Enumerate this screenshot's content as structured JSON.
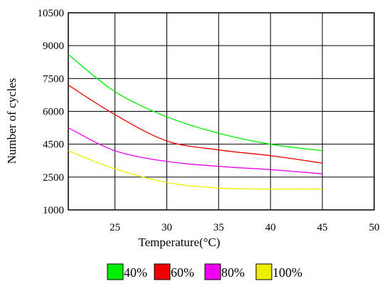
{
  "chart_data": {
    "type": "line",
    "title": "",
    "xlabel": "Temperature(°C)",
    "ylabel": "Number of cycles",
    "xlim": [
      20.5,
      50
    ],
    "ylim": [
      1000,
      10500
    ],
    "x_ticks": [
      25,
      30,
      35,
      40,
      45,
      50
    ],
    "y_ticks": [
      1000,
      2500,
      4500,
      6000,
      7500,
      9000,
      10500
    ],
    "x_tick_labels": [
      "25",
      "30",
      "35",
      "40",
      "45",
      "50"
    ],
    "y_tick_labels": [
      "1000",
      "2500",
      "4500",
      "6000",
      "7500",
      "9000",
      "10500"
    ],
    "grid": true,
    "legend_position": "bottom",
    "series": [
      {
        "name": "40%",
        "color": "#00ee00",
        "x": [
          20.5,
          25,
          30,
          35,
          40,
          45
        ],
        "y": [
          8600,
          6900,
          5750,
          5000,
          4500,
          4100
        ]
      },
      {
        "name": "60%",
        "color": "#ee0000",
        "x": [
          20.5,
          25,
          30,
          35,
          40,
          45
        ],
        "y": [
          7200,
          5850,
          4650,
          4150,
          3800,
          3350
        ]
      },
      {
        "name": "80%",
        "color": "#ee00ee",
        "x": [
          20.5,
          25,
          30,
          35,
          40,
          45
        ],
        "y": [
          5250,
          4100,
          3450,
          3150,
          2950,
          2700
        ]
      },
      {
        "name": "100%",
        "color": "#eeee00",
        "x": [
          20.5,
          25,
          30,
          35,
          40,
          45
        ],
        "y": [
          4100,
          3000,
          2250,
          2000,
          1950,
          1950
        ]
      }
    ]
  }
}
